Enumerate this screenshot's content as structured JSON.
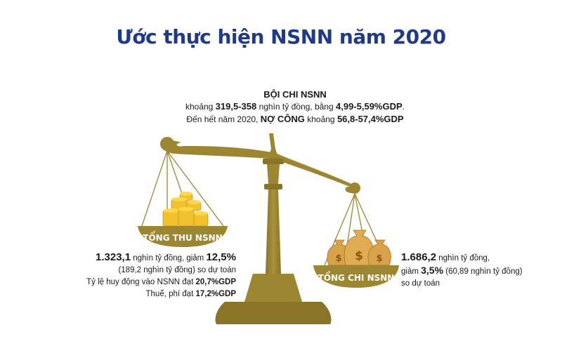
{
  "title": "Ước thực hiện NSNN năm 2020",
  "deficit": {
    "heading": "BỘI CHI NSNN",
    "line1_prefix": "khoảng ",
    "line1_amount": "319,5-358",
    "line1_mid": " nghìn tỷ đồng, bằng ",
    "line1_pct": "4,99-5,59%GDP",
    "line1_end": ".",
    "line2_prefix": "Đến hết năm 2020, ",
    "line2_label": "NỢ CÔNG",
    "line2_mid": " khoảng ",
    "line2_pct": "56,8-57,4%GDP"
  },
  "revenue": {
    "pan_label": "TỔNG THU NSNN",
    "amount": "1.323,1",
    "amount_suffix": " nghìn tỷ đồng, giảm ",
    "pct": "12,5%",
    "line2": "(189,2 nghìn tỷ đồng) so dự toán",
    "line3_prefix": "Tỷ lệ huy động vào NSNN đạt ",
    "line3_value": "20,7%GDP",
    "line4_prefix": "Thuế, phí đạt ",
    "line4_value": "17,2%GDP"
  },
  "spending": {
    "pan_label": "TỔNG CHI NSNN",
    "amount": "1.686,2",
    "amount_suffix": " nghìn tỷ đồng,",
    "line2_prefix": "giảm ",
    "pct": "3,5%",
    "line2_suffix": " (60,89 nghìn tỷ đồng)",
    "line3": "so dự toán",
    "bag_symbol": "$"
  },
  "colors": {
    "title": "#1f3a8a",
    "scale_gold": "#9c8632",
    "scale_dark": "#7d6a24",
    "coin_gold": "#f2c12e",
    "bag_tan": "#d9a14a"
  }
}
